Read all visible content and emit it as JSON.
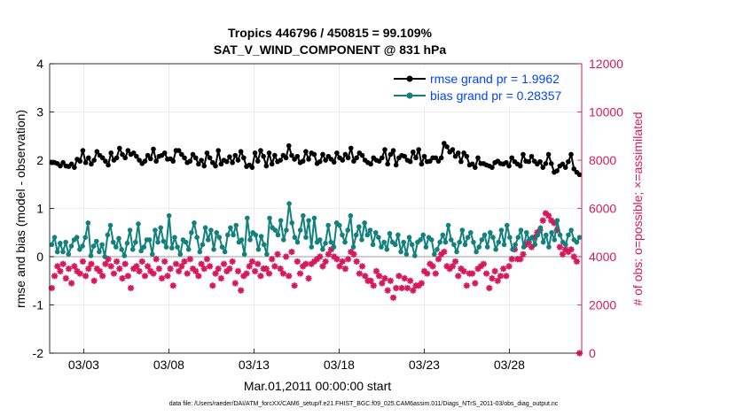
{
  "chart_data": {
    "type": "line",
    "title_line1": "Tropics 446796 / 450815 = 99.109%",
    "title_line2": "SAT_V_WIND_COMPONENT @ 831 hPa",
    "xlabel": "Mar.01,2011 00:00:00 start",
    "ylabel_left": "rmse and bias (model - observation)",
    "ylabel_right": "# of obs: o=possible; ×=assimilated",
    "footnote": "data file: /Users/raeder/DAI/ATM_forcXX/CAM6_setup/f.e21.FHIST_BGC.f09_025.CAM6assim.011/Diags_NTrS_2011-03/obs_diag_output.nc",
    "x_ticks": [
      {
        "day": 2,
        "label": "03/03"
      },
      {
        "day": 7,
        "label": "03/08"
      },
      {
        "day": 12,
        "label": "03/13"
      },
      {
        "day": 17,
        "label": "03/18"
      },
      {
        "day": 22,
        "label": "03/23"
      },
      {
        "day": 27,
        "label": "03/28"
      }
    ],
    "xlim": [
      0,
      31.25
    ],
    "ylim_left": [
      -2,
      4
    ],
    "ylim_right": [
      0,
      12000
    ],
    "y_ticks_left": [
      "-2",
      "-1",
      "0",
      "1",
      "2",
      "3",
      "4"
    ],
    "y_ticks_right": [
      "0",
      "2000",
      "4000",
      "6000",
      "8000",
      "10000",
      "12000"
    ],
    "colors": {
      "rmse": "#000000",
      "bias": "#12807c",
      "obs": "#d6195b",
      "zero": "#b0b0b0",
      "legend_text": "#0044ff",
      "right_axis": "#d6195b"
    },
    "legend": {
      "rmse_label": "rmse grand pr = 1.9962",
      "bias_label": "bias grand pr = 0.28357"
    },
    "series": [
      {
        "name": "rmse",
        "values": [
          1.95,
          1.95,
          1.93,
          1.88,
          1.95,
          1.88,
          1.87,
          1.92,
          1.85,
          2.02,
          1.98,
          2.2,
          1.95,
          2.05,
          1.92,
          2.0,
          2.18,
          2.1,
          2.05,
          1.98,
          1.9,
          2.15,
          2.0,
          2.05,
          2.25,
          2.12,
          2.05,
          2.2,
          2.12,
          2.15,
          2.08,
          2.0,
          1.93,
          1.98,
          2.1,
          2.03,
          2.23,
          1.98,
          2.08,
          2.1,
          2.15,
          2.02,
          2.03,
          1.98,
          2.2,
          2.2,
          2.12,
          2.05,
          1.95,
          1.98,
          2.12,
          2.05,
          1.92,
          2.0,
          1.88,
          2.15,
          2.05,
          1.95,
          1.88,
          2.2,
          1.92,
          2.0,
          1.97,
          2.07,
          1.95,
          2.1,
          2.0,
          2.18,
          2.05,
          1.87,
          1.9,
          1.85,
          2.15,
          1.98,
          2.2,
          2.08,
          1.88,
          2.15,
          1.92,
          2.1,
          1.97,
          2.0,
          2.1,
          2.05,
          2.3,
          2.1,
          2.02,
          2.08,
          1.95,
          1.98,
          2.18,
          2.02,
          2.15,
          2.12,
          1.93,
          1.97,
          2.12,
          2.0,
          2.08,
          2.02,
          1.96,
          2.15,
          2.05,
          2.0,
          2.12,
          2.05,
          2.25,
          1.98,
          2.05,
          2.15,
          2.1,
          2.0,
          1.95,
          1.92,
          2.05,
          2.0,
          1.98,
          2.05,
          2.22,
          1.92,
          2.12,
          2.2,
          1.9,
          2.05,
          2.1,
          2.08,
          2.0,
          1.97,
          2.17,
          2.05,
          2.22,
          1.92,
          2.08,
          1.97,
          1.98,
          2.05,
          2.05,
          1.98,
          2.05,
          2.35,
          2.28,
          2.17,
          2.22,
          2.08,
          2.15,
          1.97,
          2.15,
          2.08,
          1.9,
          1.92,
          1.85,
          2.05,
          1.93,
          1.93,
          1.9,
          1.88,
          1.85,
          1.95,
          1.98,
          1.93,
          1.92,
          1.95,
          1.88,
          2.05,
          1.97,
          1.92,
          1.88,
          2.12,
          1.98,
          1.97,
          2.08,
          1.98,
          1.92,
          1.97,
          1.85,
          1.93,
          2.12,
          1.93,
          1.75,
          1.78,
          1.88,
          1.92,
          1.85,
          1.97,
          2.12,
          1.82,
          1.75,
          1.7
        ]
      },
      {
        "name": "bias",
        "values": [
          0.25,
          0.4,
          0.1,
          0.28,
          0.1,
          0.3,
          0.05,
          0.22,
          0.35,
          0.4,
          0.15,
          0.22,
          0.4,
          0.7,
          0.02,
          0.22,
          0.32,
          0.1,
          0.25,
          0.0,
          0.45,
          0.65,
          0.3,
          0.2,
          0.38,
          0.15,
          0.02,
          0.28,
          0.55,
          0.15,
          0.3,
          0.68,
          0.12,
          0.2,
          0.35,
          0.35,
          0.05,
          0.55,
          0.3,
          0.6,
          0.32,
          0.2,
          0.85,
          0.18,
          0.4,
          0.2,
          0.05,
          0.35,
          0.3,
          0.15,
          0.5,
          0.7,
          0.4,
          0.1,
          0.25,
          0.6,
          0.35,
          0.55,
          0.15,
          0.5,
          0.4,
          0.2,
          0.1,
          0.45,
          0.6,
          0.45,
          0.65,
          0.3,
          0.35,
          0.05,
          0.8,
          0.35,
          0.5,
          0.45,
          0.15,
          0.42,
          0.25,
          0.05,
          0.8,
          0.6,
          0.55,
          0.45,
          0.75,
          0.35,
          0.55,
          1.1,
          0.7,
          0.4,
          0.3,
          0.55,
          0.85,
          0.4,
          0.75,
          0.2,
          0.8,
          0.3,
          0.35,
          0.15,
          0.28,
          0.65,
          0.3,
          0.2,
          0.7,
          0.65,
          0.45,
          0.3,
          0.55,
          0.85,
          0.2,
          0.45,
          0.62,
          0.35,
          0.7,
          0.45,
          0.55,
          0.25,
          0.5,
          0.4,
          0.2,
          0.3,
          0.15,
          0.48,
          0.3,
          0.25,
          0.45,
          0.1,
          0.3,
          0.05,
          0.4,
          0.25,
          0.02,
          0.3,
          0.35,
          0.45,
          0.2,
          0.4,
          0.35,
          0.05,
          0.15,
          0.3,
          0.45,
          0.3,
          0.65,
          0.35,
          0.25,
          0.1,
          0.3,
          0.55,
          0.25,
          0.4,
          0.5,
          0.3,
          0.1,
          0.2,
          0.35,
          0.45,
          0.2,
          0.5,
          0.4,
          0.15,
          0.3,
          0.55,
          0.25,
          0.65,
          0.4,
          0.15,
          0.25,
          0.4,
          0.55,
          0.2,
          0.5,
          0.35,
          0.4,
          0.25,
          0.45,
          0.6,
          0.3,
          0.45,
          0.2,
          0.5,
          0.35,
          0.75,
          0.45,
          0.3,
          0.25,
          0.45,
          0.55,
          0.35,
          0.3,
          0.4
        ]
      },
      {
        "name": "obs_possible",
        "values": [
          2700,
          3200,
          3600,
          3400,
          3700,
          3100,
          3500,
          2900,
          3600,
          3400,
          3300,
          3800,
          3200,
          3500,
          3700,
          3000,
          3500,
          3400,
          3200,
          3700,
          3900,
          3600,
          3300,
          3800,
          3500,
          3100,
          3700,
          3200,
          2700,
          3500,
          3600,
          3400,
          3800,
          3200,
          3600,
          3400,
          3300,
          3900,
          3500,
          3100,
          3800,
          3200,
          3500,
          2800,
          3700,
          3400,
          3600,
          3800,
          3300,
          3900,
          3500,
          3400,
          3200,
          3700,
          3500,
          3900,
          3600,
          2800,
          3300,
          3500,
          3100,
          3700,
          3400,
          3500,
          3800,
          2900,
          3400,
          2600,
          3200,
          3300,
          3600,
          3800,
          3400,
          3700,
          3200,
          3500,
          3500,
          3300,
          3900,
          3600,
          4100,
          3500,
          3300,
          4000,
          3200,
          4200,
          2800,
          3800,
          3300,
          3600,
          3700,
          3100,
          3700,
          3800,
          3900,
          4000,
          3600,
          3800,
          4100,
          4300,
          4000,
          3900,
          3600,
          3800,
          3500,
          3900,
          4200,
          4100,
          3800,
          3300,
          3600,
          3200,
          3000,
          3000,
          2800,
          3400,
          3200,
          2900,
          3100,
          2600,
          3000,
          2300,
          2700,
          3200,
          2700,
          3100,
          2700,
          3000,
          2600,
          2800,
          2800,
          2900,
          3400,
          3300,
          3700,
          3600,
          3300,
          3900,
          4100,
          4200,
          3600,
          3500,
          3600,
          3800,
          3200,
          3500,
          3400,
          2800,
          3300,
          3300,
          2900,
          3500,
          3600,
          3700,
          3300,
          2700,
          3100,
          3400,
          3000,
          3200,
          3500,
          3200,
          3600,
          3900,
          4300,
          3900,
          3900,
          4100,
          4500,
          4600,
          4400,
          4800,
          5000,
          5100,
          5500,
          5800,
          5700,
          5500,
          5400,
          5100,
          4400,
          4100,
          4300,
          4200,
          4300,
          4000,
          3800,
          0
        ]
      }
    ]
  }
}
